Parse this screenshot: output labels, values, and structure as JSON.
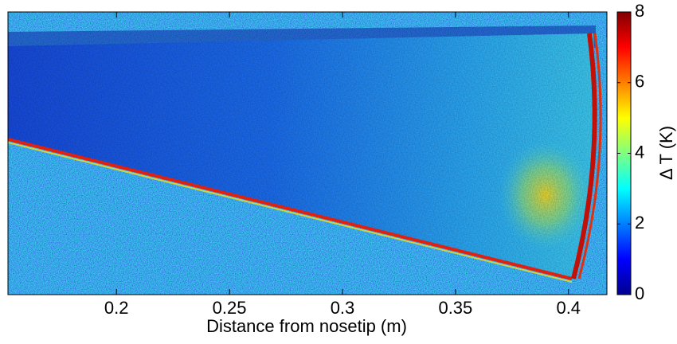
{
  "chart_data": {
    "type": "heatmap",
    "xlabel": "Distance from nosetip (m)",
    "xlim": [
      0.152,
      0.417
    ],
    "xticks": [
      0.2,
      0.25,
      0.3,
      0.35,
      0.4
    ],
    "colorbar": {
      "label": "Δ T (K)",
      "lim": [
        0,
        8
      ],
      "ticks": [
        0,
        2,
        4,
        6,
        8
      ],
      "colormap": "jet"
    }
  }
}
